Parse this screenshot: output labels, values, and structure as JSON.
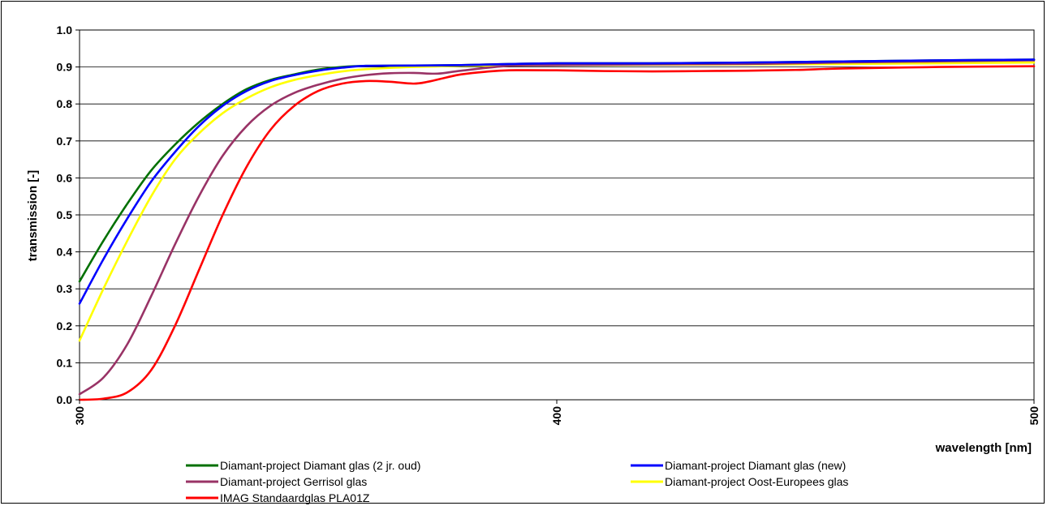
{
  "chart_data": {
    "type": "line",
    "title": "",
    "xlabel": "wavelength [nm]",
    "ylabel": "transmission [-]",
    "xlim": [
      300,
      500
    ],
    "ylim": [
      0,
      1
    ],
    "x_ticks": [
      "300",
      "400",
      "500"
    ],
    "y_ticks": [
      "0.0",
      "0.1",
      "0.2",
      "0.3",
      "0.4",
      "0.5",
      "0.6",
      "0.7",
      "0.8",
      "0.9",
      "1.0"
    ],
    "grid": "horizontal",
    "legend_position": "bottom",
    "series": [
      {
        "name": "Diamant-project  Diamant glas (2 jr. oud)",
        "color": "#007000",
        "x": [
          300,
          305,
          310,
          315,
          320,
          325,
          330,
          335,
          340,
          345,
          350,
          355,
          360,
          370,
          380,
          390,
          400,
          420,
          440,
          460,
          480,
          500
        ],
        "y": [
          0.32,
          0.43,
          0.53,
          0.62,
          0.69,
          0.75,
          0.8,
          0.84,
          0.865,
          0.88,
          0.893,
          0.9,
          0.903,
          0.904,
          0.905,
          0.908,
          0.91,
          0.91,
          0.912,
          0.915,
          0.918,
          0.92
        ]
      },
      {
        "name": "Diamant-project  Diamant glas (new)",
        "color": "#0000ff",
        "x": [
          300,
          305,
          310,
          315,
          320,
          325,
          330,
          335,
          340,
          345,
          350,
          355,
          360,
          370,
          380,
          390,
          400,
          420,
          440,
          460,
          480,
          500
        ],
        "y": [
          0.26,
          0.38,
          0.49,
          0.59,
          0.67,
          0.74,
          0.795,
          0.835,
          0.862,
          0.878,
          0.89,
          0.898,
          0.903,
          0.904,
          0.905,
          0.908,
          0.91,
          0.91,
          0.912,
          0.915,
          0.918,
          0.92
        ]
      },
      {
        "name": "Diamant-project  Gerrisol  glas",
        "color": "#993366",
        "x": [
          300,
          305,
          310,
          315,
          320,
          325,
          330,
          335,
          340,
          345,
          350,
          355,
          360,
          365,
          370,
          375,
          380,
          390,
          400,
          420,
          440,
          460,
          480,
          500
        ],
        "y": [
          0.015,
          0.06,
          0.15,
          0.28,
          0.42,
          0.55,
          0.66,
          0.74,
          0.795,
          0.83,
          0.852,
          0.868,
          0.878,
          0.883,
          0.884,
          0.882,
          0.89,
          0.903,
          0.905,
          0.907,
          0.908,
          0.912,
          0.915,
          0.918
        ]
      },
      {
        "name": "Diamant-project  Oost-Europees  glas",
        "color": "#ffff00",
        "x": [
          300,
          305,
          310,
          315,
          320,
          325,
          330,
          335,
          340,
          345,
          350,
          355,
          360,
          370,
          380,
          390,
          400,
          420,
          440,
          460,
          480,
          500
        ],
        "y": [
          0.16,
          0.3,
          0.43,
          0.55,
          0.65,
          0.72,
          0.775,
          0.815,
          0.845,
          0.865,
          0.878,
          0.888,
          0.894,
          0.9,
          0.903,
          0.905,
          0.905,
          0.906,
          0.907,
          0.908,
          0.91,
          0.912
        ]
      },
      {
        "name": "IMAG   Standaardglas PLA01Z",
        "color": "#ff0000",
        "x": [
          300,
          305,
          310,
          315,
          320,
          325,
          330,
          335,
          340,
          345,
          350,
          355,
          360,
          365,
          370,
          373,
          377,
          380,
          385,
          390,
          400,
          410,
          420,
          430,
          440,
          450,
          460,
          480,
          500
        ],
        "y": [
          0.0,
          0.003,
          0.02,
          0.08,
          0.2,
          0.35,
          0.5,
          0.63,
          0.73,
          0.795,
          0.835,
          0.855,
          0.862,
          0.86,
          0.855,
          0.86,
          0.872,
          0.88,
          0.887,
          0.891,
          0.891,
          0.889,
          0.888,
          0.889,
          0.89,
          0.892,
          0.896,
          0.9,
          0.902
        ]
      }
    ]
  }
}
